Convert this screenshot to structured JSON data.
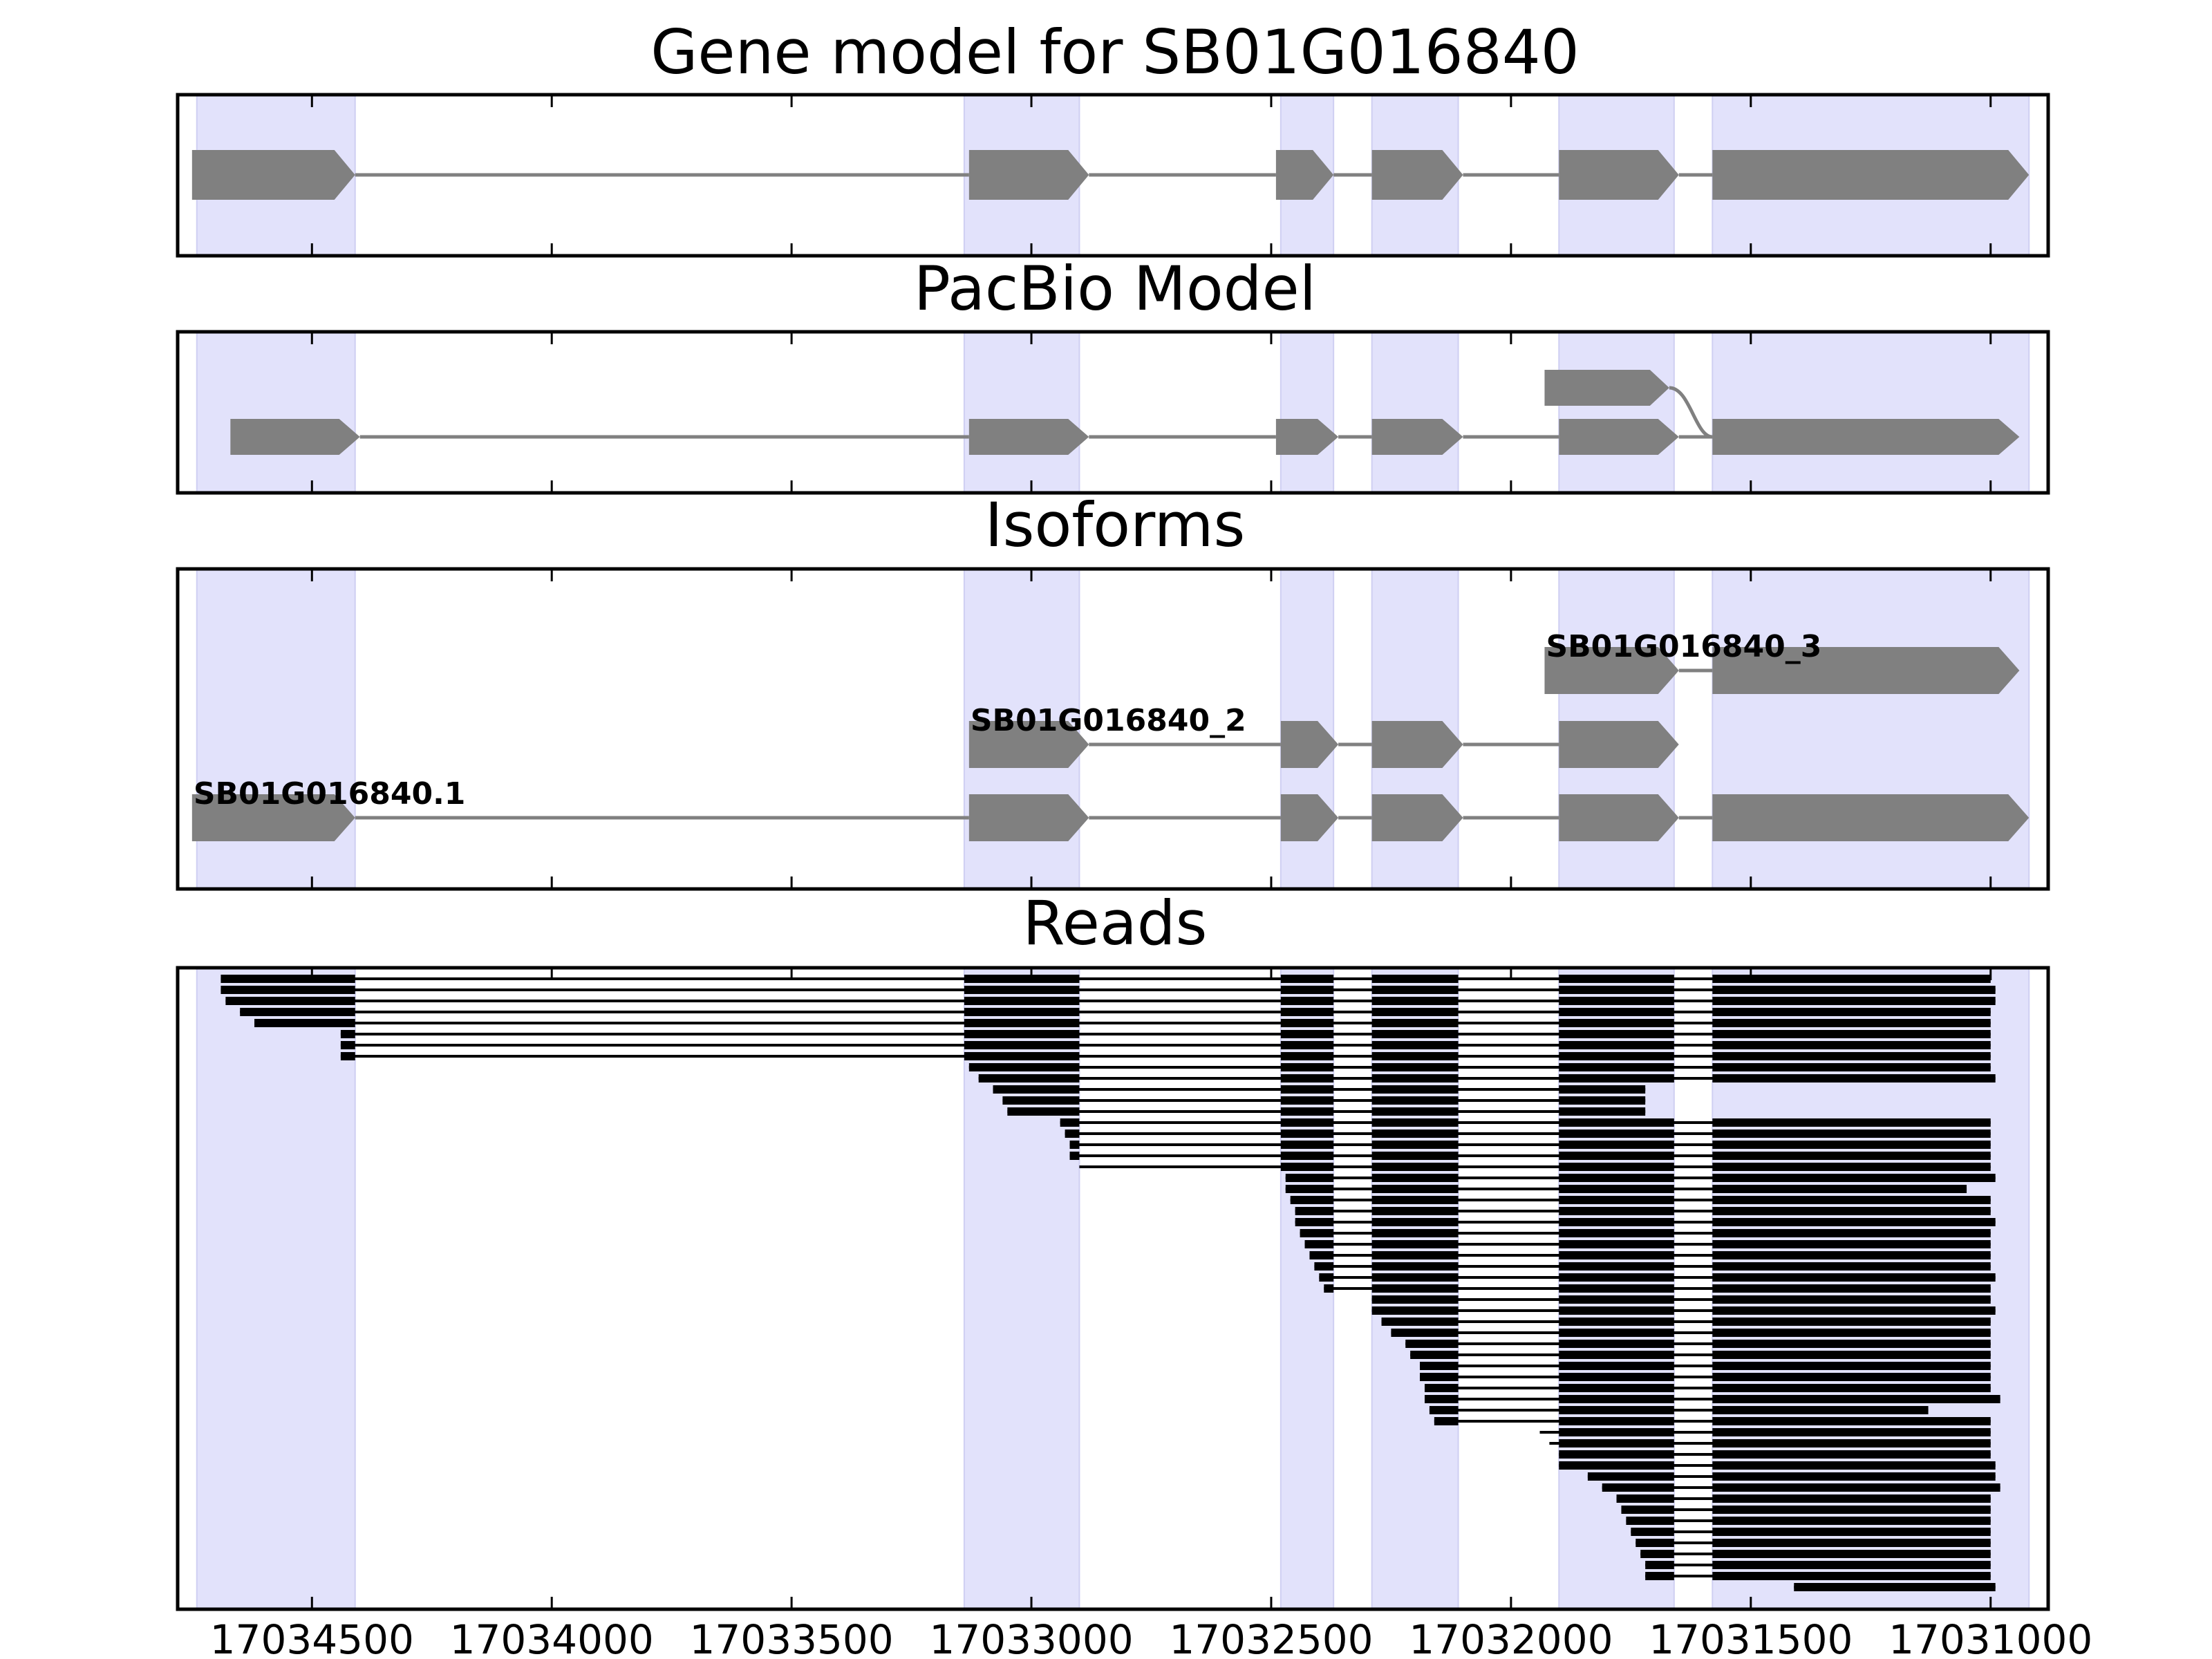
{
  "panels": {
    "gene_model_title": "Gene model for SB01G016840",
    "pacbio_title": "PacBio Model",
    "isoforms_title": "Isoforms",
    "reads_title": "Reads"
  },
  "colors": {
    "exon_fill": "#808080",
    "intron_line": "#808080",
    "highlight_band": "#e2e2fb",
    "read_color": "#000000",
    "frame": "#000000"
  },
  "chart_data": {
    "type": "gene-structure",
    "xlim": [
      17034780,
      17030880
    ],
    "x_axis_reversed": true,
    "x_ticks": [
      17034500,
      17034000,
      17033500,
      17033000,
      17032500,
      17032000,
      17031500,
      17031000
    ],
    "x_tick_labels": [
      "17034500",
      "17034000",
      "17033500",
      "17033000",
      "17032500",
      "17032000",
      "17031500",
      "17031000"
    ],
    "highlight_regions": [
      [
        17034740,
        17034410
      ],
      [
        17033140,
        17032900
      ],
      [
        17032480,
        17032370
      ],
      [
        17032290,
        17032110
      ],
      [
        17031900,
        17031660
      ],
      [
        17031580,
        17030920
      ]
    ],
    "gene_model": {
      "exons": [
        [
          17034750,
          17034410
        ],
        [
          17033130,
          17032880
        ],
        [
          17032490,
          17032370
        ],
        [
          17032290,
          17032100
        ],
        [
          17031900,
          17031650
        ],
        [
          17031580,
          17030920
        ]
      ]
    },
    "pacbio_model": {
      "main": [
        [
          17034670,
          17034400
        ],
        [
          17033130,
          17032880
        ],
        [
          17032490,
          17032360
        ],
        [
          17032290,
          17032100
        ],
        [
          17031900,
          17031650
        ],
        [
          17031580,
          17030940
        ]
      ],
      "alternative": [
        17031930,
        17031670
      ]
    },
    "isoforms": [
      {
        "label": "SB01G016840.1",
        "exons": [
          [
            17034750,
            17034410
          ],
          [
            17033130,
            17032880
          ],
          [
            17032480,
            17032360
          ],
          [
            17032290,
            17032100
          ],
          [
            17031900,
            17031650
          ],
          [
            17031580,
            17030920
          ]
        ]
      },
      {
        "label": "SB01G016840_2",
        "exons": [
          [
            17033130,
            17032880
          ],
          [
            17032480,
            17032360
          ],
          [
            17032290,
            17032100
          ],
          [
            17031900,
            17031650
          ]
        ]
      },
      {
        "label": "SB01G016840_3",
        "exons": [
          [
            17031930,
            17031650
          ],
          [
            17031580,
            17030940
          ]
        ]
      }
    ],
    "reads": [
      {
        "start": 17034690,
        "end": 17031000
      },
      {
        "start": 17034690,
        "end": 17030990
      },
      {
        "start": 17034680,
        "end": 17030990
      },
      {
        "start": 17034650,
        "end": 17031000
      },
      {
        "start": 17034620,
        "end": 17031000
      },
      {
        "start": 17034440,
        "end": 17031000
      },
      {
        "start": 17034440,
        "end": 17031000
      },
      {
        "start": 17034440,
        "end": 17031000
      },
      {
        "start": 17033130,
        "end": 17031000
      },
      {
        "start": 17033110,
        "end": 17030990
      },
      {
        "start": 17033080,
        "end": 17031720
      },
      {
        "start": 17033060,
        "end": 17031720
      },
      {
        "start": 17033050,
        "end": 17031720
      },
      {
        "start": 17032940,
        "end": 17031000
      },
      {
        "start": 17032930,
        "end": 17031000
      },
      {
        "start": 17032920,
        "end": 17031000
      },
      {
        "start": 17032920,
        "end": 17031000
      },
      {
        "start": 17032900,
        "end": 17031000
      },
      {
        "start": 17032470,
        "end": 17030990
      },
      {
        "start": 17032470,
        "end": 17031050
      },
      {
        "start": 17032460,
        "end": 17031000
      },
      {
        "start": 17032450,
        "end": 17031000
      },
      {
        "start": 17032450,
        "end": 17030990
      },
      {
        "start": 17032440,
        "end": 17031000
      },
      {
        "start": 17032430,
        "end": 17031000
      },
      {
        "start": 17032420,
        "end": 17031000
      },
      {
        "start": 17032410,
        "end": 17031000
      },
      {
        "start": 17032400,
        "end": 17030990
      },
      {
        "start": 17032390,
        "end": 17031000
      },
      {
        "start": 17032290,
        "end": 17031000
      },
      {
        "start": 17032290,
        "end": 17030990
      },
      {
        "start": 17032270,
        "end": 17031000
      },
      {
        "start": 17032250,
        "end": 17031000
      },
      {
        "start": 17032220,
        "end": 17031000
      },
      {
        "start": 17032210,
        "end": 17031000
      },
      {
        "start": 17032190,
        "end": 17031000
      },
      {
        "start": 17032190,
        "end": 17031000
      },
      {
        "start": 17032180,
        "end": 17031000
      },
      {
        "start": 17032180,
        "end": 17030980
      },
      {
        "start": 17032170,
        "end": 17031130
      },
      {
        "start": 17032160,
        "end": 17031000
      },
      {
        "start": 17031940,
        "end": 17031000
      },
      {
        "start": 17031920,
        "end": 17031000
      },
      {
        "start": 17031900,
        "end": 17031000
      },
      {
        "start": 17031900,
        "end": 17030990
      },
      {
        "start": 17031840,
        "end": 17030990
      },
      {
        "start": 17031810,
        "end": 17030980
      },
      {
        "start": 17031780,
        "end": 17031000
      },
      {
        "start": 17031770,
        "end": 17031000
      },
      {
        "start": 17031760,
        "end": 17031000
      },
      {
        "start": 17031750,
        "end": 17031000
      },
      {
        "start": 17031740,
        "end": 17031000
      },
      {
        "start": 17031730,
        "end": 17031000
      },
      {
        "start": 17031720,
        "end": 17031000
      },
      {
        "start": 17031720,
        "end": 17031000
      },
      {
        "start": 17031410,
        "end": 17030990
      }
    ]
  }
}
